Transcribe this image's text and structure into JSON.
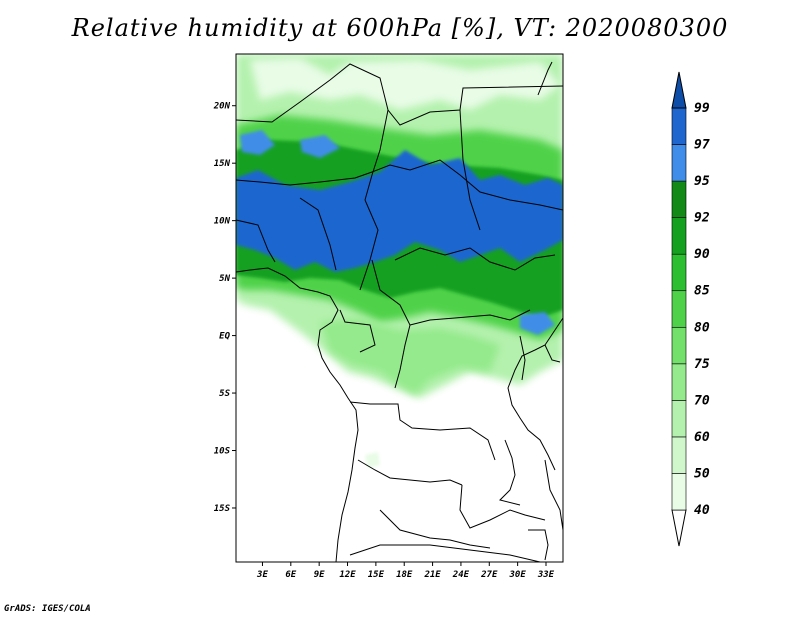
{
  "title": "Relative humidity at 600hPa [%], VT: 2020080300",
  "credit": "GrADS: IGES/COLA",
  "map": {
    "lat_labels": [
      {
        "label": "20N",
        "lat": 20
      },
      {
        "label": "15N",
        "lat": 15
      },
      {
        "label": "10N",
        "lat": 10
      },
      {
        "label": "5N",
        "lat": 5
      },
      {
        "label": "EQ",
        "lat": 0
      },
      {
        "label": "5S",
        "lat": -5
      },
      {
        "label": "10S",
        "lat": -10
      },
      {
        "label": "15S",
        "lat": -15
      }
    ],
    "lon_labels": [
      {
        "label": "3E",
        "lon": 3
      },
      {
        "label": "6E",
        "lon": 6
      },
      {
        "label": "9E",
        "lon": 9
      },
      {
        "label": "12E",
        "lon": 12
      },
      {
        "label": "15E",
        "lon": 15
      },
      {
        "label": "18E",
        "lon": 18
      },
      {
        "label": "21E",
        "lon": 21
      },
      {
        "label": "24E",
        "lon": 24
      },
      {
        "label": "27E",
        "lon": 27
      },
      {
        "label": "30E",
        "lon": 30
      },
      {
        "label": "33E",
        "lon": 33
      }
    ],
    "lon_range": [
      0.2,
      34.8
    ],
    "lat_range": [
      -19.7,
      24.5
    ]
  },
  "colorbar": {
    "levels": [
      "40",
      "50",
      "60",
      "70",
      "75",
      "80",
      "85",
      "90",
      "92",
      "95",
      "97",
      "99"
    ],
    "colors": [
      "#ffffff",
      "#e8fce6",
      "#cff7cb",
      "#b4f1ae",
      "#94ea8c",
      "#72e06a",
      "#4fd24a",
      "#2dbe31",
      "#16a020",
      "#138a18",
      "#3f8de8",
      "#1f66cf",
      "#0f4ea8"
    ]
  },
  "colors": {
    "land_background": "#ffffff",
    "moist_green": "#2dbe31",
    "saturated_blue": "#1f66cf",
    "boundary": "#000000"
  }
}
